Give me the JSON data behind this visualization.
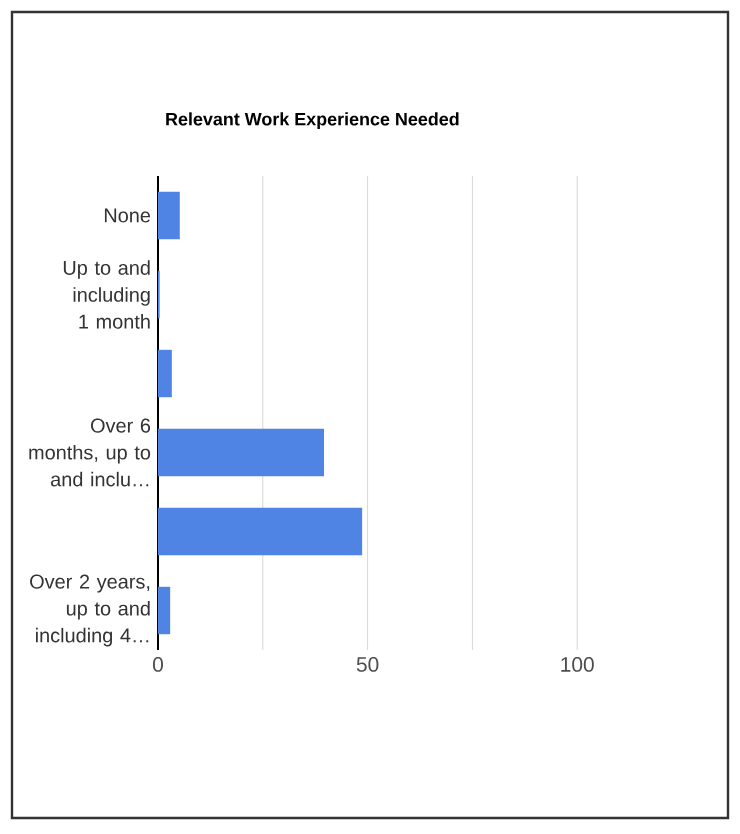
{
  "chart_data": {
    "type": "bar",
    "orientation": "horizontal",
    "title": "Relevant Work Experience Needed",
    "categories": [
      "None",
      "Up to and including 1 month",
      null,
      "Over 6 months, up to and inclu…",
      null,
      "Over 2 years, up to and including 4…"
    ],
    "values": [
      5.2,
      0.4,
      3.3,
      39.6,
      48.7,
      2.9
    ],
    "color": "#4f84e4",
    "xlim": [
      0,
      100
    ],
    "xticks": [
      0,
      {
        "value": 25,
        "label": null
      },
      50,
      {
        "value": 75,
        "label": null
      },
      100
    ],
    "grid": "x"
  }
}
